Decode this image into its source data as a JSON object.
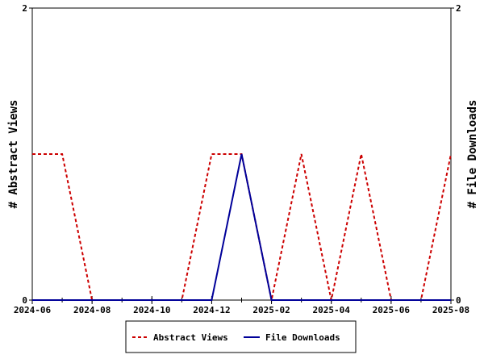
{
  "chart_data": {
    "type": "line",
    "xlabel": "",
    "ylabel": "# Abstract Views",
    "y2label": "# File Downloads",
    "x": [
      "2024-06",
      "2024-07",
      "2024-08",
      "2024-09",
      "2024-10",
      "2024-11",
      "2024-12",
      "2025-01",
      "2025-02",
      "2025-03",
      "2025-04",
      "2025-05",
      "2025-06",
      "2025-07",
      "2025-08"
    ],
    "x_tick_labels": [
      "2024-06",
      "2024-08",
      "2024-10",
      "2024-12",
      "2025-02",
      "2025-04",
      "2025-06",
      "2025-08"
    ],
    "ylim": [
      0,
      2
    ],
    "y_tick_labels": [
      "0",
      "2"
    ],
    "y2lim": [
      0,
      2
    ],
    "y2_tick_labels": [
      "0",
      "2"
    ],
    "grid": false,
    "legend_position": "bottom",
    "series": [
      {
        "name": "Abstract Views",
        "axis": "left",
        "color": "#cc0000",
        "dash": "dashed",
        "values": [
          1,
          1,
          0,
          0,
          0,
          0,
          1,
          1,
          0,
          1,
          0,
          1,
          0,
          0,
          1
        ]
      },
      {
        "name": "File Downloads",
        "axis": "right",
        "color": "#000099",
        "dash": "solid",
        "values": [
          0,
          0,
          0,
          0,
          0,
          0,
          0,
          1,
          0,
          0,
          0,
          0,
          0,
          0,
          0
        ]
      }
    ]
  }
}
